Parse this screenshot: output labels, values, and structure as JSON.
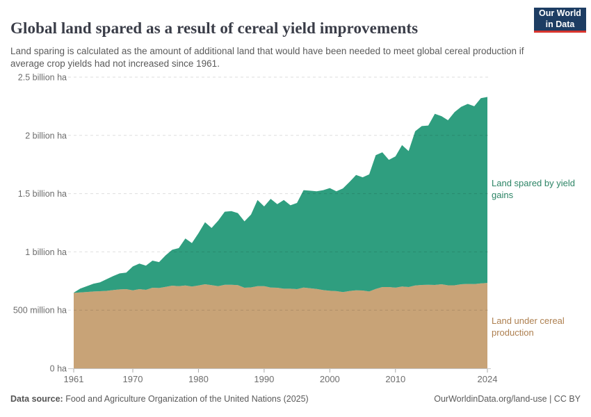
{
  "header": {
    "title": "Global land spared as a result of cereal yield improvements",
    "subtitle": "Land sparing is calculated as the amount of additional land that would have been needed to meet global cereal production if average crop yields had not increased since 1961.",
    "logo_line1": "Our World",
    "logo_line2": "in Data",
    "logo_bg_color": "#1d3d63",
    "logo_accent_color": "#d8352e"
  },
  "chart_data": {
    "type": "area",
    "stacked": true,
    "unit": "million hectares",
    "x_label": "",
    "y_label": "",
    "ylim": [
      0,
      2500
    ],
    "grid": "dashed horizontal",
    "x": [
      1961,
      1962,
      1963,
      1964,
      1965,
      1966,
      1967,
      1968,
      1969,
      1970,
      1971,
      1972,
      1973,
      1974,
      1975,
      1976,
      1977,
      1978,
      1979,
      1980,
      1981,
      1982,
      1983,
      1984,
      1985,
      1986,
      1987,
      1988,
      1989,
      1990,
      1991,
      1992,
      1993,
      1994,
      1995,
      1996,
      1997,
      1998,
      1999,
      2000,
      2001,
      2002,
      2003,
      2004,
      2005,
      2006,
      2007,
      2008,
      2009,
      2010,
      2011,
      2012,
      2013,
      2014,
      2015,
      2016,
      2017,
      2018,
      2019,
      2020,
      2021,
      2022,
      2023,
      2024
    ],
    "series": [
      {
        "name": "Land under cereal production",
        "color": "#c8a377",
        "label_color": "#ad7f4f",
        "values": [
          648,
          652,
          656,
          660,
          662,
          665,
          672,
          678,
          680,
          670,
          680,
          674,
          692,
          690,
          700,
          710,
          705,
          712,
          702,
          712,
          722,
          714,
          705,
          718,
          718,
          715,
          692,
          695,
          705,
          706,
          694,
          692,
          684,
          684,
          680,
          694,
          688,
          682,
          672,
          666,
          663,
          655,
          664,
          670,
          668,
          660,
          682,
          698,
          698,
          693,
          702,
          698,
          712,
          716,
          717,
          716,
          722,
          713,
          713,
          722,
          725,
          723,
          730,
          733
        ]
      },
      {
        "name": "Land spared by yield gains",
        "color": "#2f9e7f",
        "label_color": "#2c8465",
        "values": [
          2,
          33,
          50,
          66,
          76,
          100,
          120,
          137,
          142,
          205,
          220,
          208,
          233,
          222,
          270,
          308,
          327,
          403,
          373,
          448,
          533,
          491,
          563,
          627,
          632,
          618,
          570,
          625,
          741,
          684,
          761,
          718,
          761,
          716,
          740,
          836,
          837,
          838,
          858,
          882,
          857,
          890,
          936,
          990,
          972,
          1005,
          1148,
          1157,
          1092,
          1127,
          1215,
          1167,
          1323,
          1364,
          1368,
          1469,
          1443,
          1417,
          1487,
          1523,
          1545,
          1527,
          1590,
          1597
        ]
      }
    ],
    "y_ticks": [
      {
        "value": 0,
        "label": "0 ha"
      },
      {
        "value": 500,
        "label": "500 million ha"
      },
      {
        "value": 1000,
        "label": "1 billion ha"
      },
      {
        "value": 1500,
        "label": "1.5 billion ha"
      },
      {
        "value": 2000,
        "label": "2 billion ha"
      },
      {
        "value": 2500,
        "label": "2.5 billion ha"
      }
    ],
    "x_ticks": [
      1961,
      1970,
      1980,
      1990,
      2000,
      2010,
      2024
    ],
    "legend_position": "right of plot, colored text annotations"
  },
  "footer": {
    "source_label": "Data source:",
    "source_text": " Food and Agriculture Organization of the United Nations (2025)",
    "right_text": "OurWorldinData.org/land-use | CC BY"
  }
}
